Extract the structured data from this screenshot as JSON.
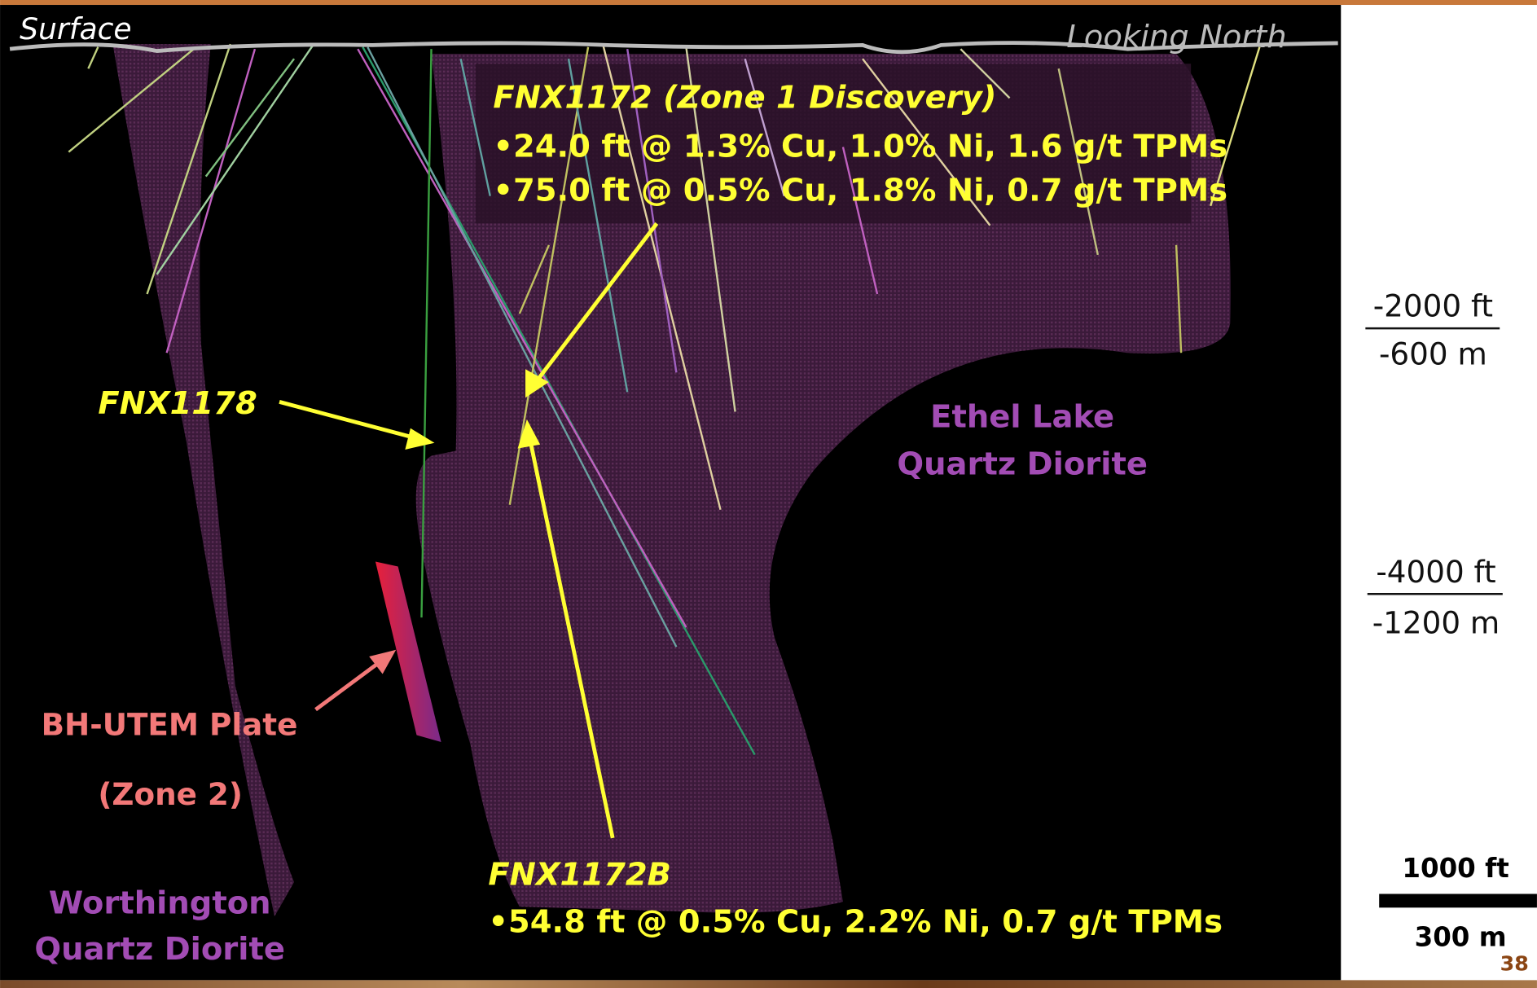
{
  "labels": {
    "surface": "Surface",
    "view": "Looking North"
  },
  "callouts": {
    "fnx1172": {
      "title": "FNX1172 (Zone 1 Discovery)",
      "intervals": [
        "•24.0 ft @ 1.3% Cu, 1.0% Ni, 1.6 g/t TPMs",
        "•75.0 ft @ 0.5% Cu, 1.8% Ni, 0.7 g/t TPMs"
      ]
    },
    "fnx1178": "FNX1178",
    "bh_utem": {
      "title": "BH-UTEM Plate",
      "zone": "(Zone 2)"
    },
    "fnx1172b": {
      "title": "FNX1172B",
      "intervals": [
        "•54.8 ft @ 0.5% Cu, 2.2% Ni, 0.7 g/t TPMs"
      ]
    }
  },
  "units": {
    "ethel_lake": [
      "Ethel Lake",
      "Quartz Diorite"
    ],
    "worthington": [
      "Worthington",
      "Quartz Diorite"
    ]
  },
  "depth_scale": [
    {
      "ft": "-2000 ft",
      "m": "-600 m"
    },
    {
      "ft": "-4000 ft",
      "m": "-1200 m"
    }
  ],
  "scale_bar": {
    "ft": "1000 ft",
    "m": "300 m"
  },
  "page_number": "38"
}
